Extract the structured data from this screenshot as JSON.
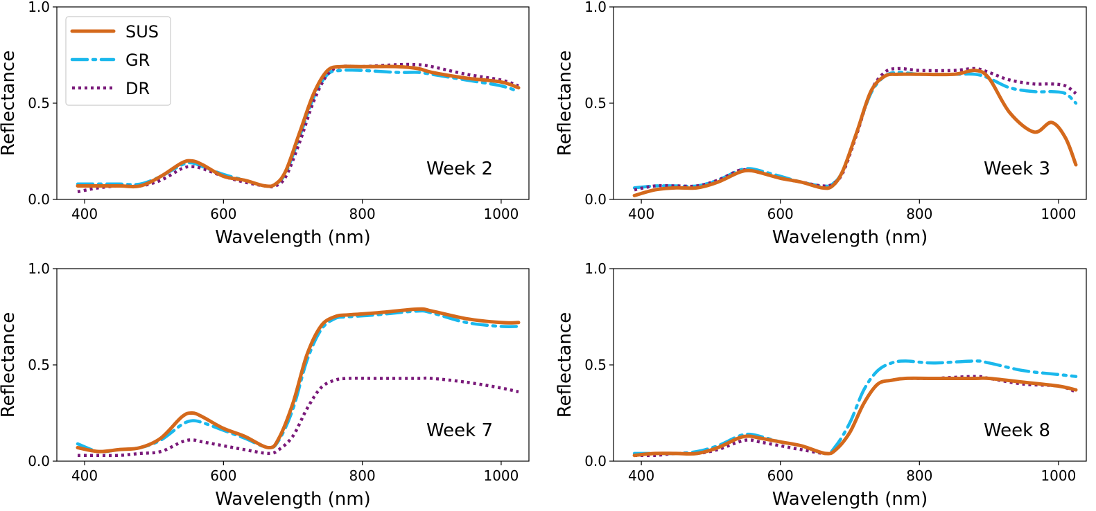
{
  "chart_data": [
    {
      "type": "line",
      "annotation": "Week 2",
      "xlabel": "Wavelength (nm)",
      "ylabel": "Reflectance",
      "xlim": [
        360,
        1040
      ],
      "ylim": [
        0,
        1
      ],
      "xticks": [
        400,
        600,
        800,
        1000
      ],
      "yticks": [
        0.0,
        0.5,
        1.0
      ],
      "ytick_labels": [
        "0.0",
        "0.5",
        "1.0"
      ],
      "legend": "top-left",
      "series": [
        {
          "name": "SUS",
          "color": "#d4691c",
          "style": "solid",
          "x": [
            390,
            420,
            450,
            480,
            510,
            540,
            555,
            570,
            600,
            630,
            660,
            675,
            690,
            710,
            730,
            750,
            770,
            800,
            850,
            880,
            900,
            950,
            1000,
            1025
          ],
          "y": [
            0.07,
            0.07,
            0.07,
            0.07,
            0.12,
            0.19,
            0.2,
            0.18,
            0.12,
            0.1,
            0.07,
            0.08,
            0.15,
            0.35,
            0.55,
            0.67,
            0.69,
            0.69,
            0.69,
            0.68,
            0.66,
            0.63,
            0.61,
            0.58
          ]
        },
        {
          "name": "GR",
          "color": "#1ab8ec",
          "style": "dashdot",
          "x": [
            390,
            420,
            450,
            480,
            510,
            540,
            555,
            570,
            600,
            630,
            660,
            675,
            690,
            710,
            730,
            750,
            770,
            800,
            850,
            880,
            900,
            950,
            1000,
            1025
          ],
          "y": [
            0.08,
            0.08,
            0.08,
            0.08,
            0.12,
            0.18,
            0.19,
            0.17,
            0.13,
            0.1,
            0.07,
            0.08,
            0.14,
            0.33,
            0.53,
            0.65,
            0.67,
            0.67,
            0.66,
            0.66,
            0.65,
            0.62,
            0.59,
            0.56
          ]
        },
        {
          "name": "DR",
          "color": "#7a1a7a",
          "style": "dotted",
          "x": [
            390,
            420,
            450,
            480,
            510,
            540,
            555,
            570,
            600,
            630,
            660,
            675,
            690,
            710,
            730,
            750,
            770,
            800,
            850,
            880,
            900,
            950,
            1000,
            1025
          ],
          "y": [
            0.04,
            0.06,
            0.07,
            0.07,
            0.1,
            0.16,
            0.17,
            0.16,
            0.12,
            0.09,
            0.07,
            0.07,
            0.12,
            0.3,
            0.51,
            0.65,
            0.69,
            0.69,
            0.7,
            0.7,
            0.69,
            0.65,
            0.62,
            0.59
          ]
        }
      ]
    },
    {
      "type": "line",
      "annotation": "Week 3",
      "xlabel": "Wavelength (nm)",
      "ylabel": "Reflectance",
      "xlim": [
        360,
        1040
      ],
      "ylim": [
        0,
        1
      ],
      "xticks": [
        400,
        600,
        800,
        1000
      ],
      "yticks": [
        0.0,
        0.5,
        1.0
      ],
      "ytick_labels": [
        "0.0",
        "0.5",
        "1.0"
      ],
      "series": [
        {
          "name": "SUS",
          "color": "#d4691c",
          "style": "solid",
          "x": [
            390,
            420,
            450,
            480,
            510,
            540,
            555,
            570,
            600,
            630,
            660,
            675,
            690,
            710,
            730,
            750,
            770,
            800,
            850,
            880,
            900,
            930,
            965,
            990,
            1010,
            1025
          ],
          "y": [
            0.02,
            0.05,
            0.06,
            0.06,
            0.09,
            0.14,
            0.15,
            0.14,
            0.11,
            0.09,
            0.06,
            0.07,
            0.15,
            0.35,
            0.56,
            0.64,
            0.65,
            0.65,
            0.65,
            0.67,
            0.63,
            0.45,
            0.35,
            0.4,
            0.32,
            0.18
          ]
        },
        {
          "name": "GR",
          "color": "#1ab8ec",
          "style": "dashdot",
          "x": [
            390,
            420,
            450,
            480,
            510,
            540,
            555,
            570,
            600,
            630,
            660,
            675,
            690,
            710,
            730,
            750,
            770,
            800,
            850,
            880,
            900,
            930,
            965,
            990,
            1010,
            1025
          ],
          "y": [
            0.06,
            0.07,
            0.07,
            0.07,
            0.1,
            0.15,
            0.16,
            0.15,
            0.12,
            0.09,
            0.07,
            0.08,
            0.15,
            0.35,
            0.55,
            0.64,
            0.66,
            0.65,
            0.65,
            0.65,
            0.63,
            0.58,
            0.56,
            0.56,
            0.55,
            0.5
          ]
        },
        {
          "name": "DR",
          "color": "#7a1a7a",
          "style": "dotted",
          "x": [
            390,
            420,
            450,
            480,
            510,
            540,
            555,
            570,
            600,
            630,
            660,
            675,
            690,
            710,
            730,
            750,
            770,
            800,
            850,
            880,
            900,
            930,
            965,
            990,
            1010,
            1025
          ],
          "y": [
            0.05,
            0.07,
            0.07,
            0.07,
            0.1,
            0.15,
            0.15,
            0.14,
            0.11,
            0.09,
            0.07,
            0.08,
            0.14,
            0.34,
            0.56,
            0.66,
            0.68,
            0.67,
            0.67,
            0.68,
            0.66,
            0.62,
            0.6,
            0.6,
            0.59,
            0.55
          ]
        }
      ]
    },
    {
      "type": "line",
      "annotation": "Week 7",
      "xlabel": "Wavelength (nm)",
      "ylabel": "Reflectance",
      "xlim": [
        360,
        1040
      ],
      "ylim": [
        0,
        1
      ],
      "xticks": [
        400,
        600,
        800,
        1000
      ],
      "yticks": [
        0.0,
        0.5,
        1.0
      ],
      "ytick_labels": [
        "0.0",
        "0.5",
        "1.0"
      ],
      "series": [
        {
          "name": "SUS",
          "color": "#d4691c",
          "style": "solid",
          "x": [
            390,
            420,
            450,
            480,
            510,
            540,
            555,
            570,
            600,
            630,
            665,
            680,
            700,
            720,
            740,
            760,
            780,
            820,
            880,
            900,
            950,
            1000,
            1025
          ],
          "y": [
            0.07,
            0.05,
            0.06,
            0.07,
            0.12,
            0.23,
            0.25,
            0.23,
            0.17,
            0.13,
            0.07,
            0.12,
            0.3,
            0.55,
            0.7,
            0.75,
            0.76,
            0.77,
            0.79,
            0.78,
            0.74,
            0.72,
            0.72
          ]
        },
        {
          "name": "GR",
          "color": "#1ab8ec",
          "style": "dashdot",
          "x": [
            390,
            420,
            450,
            480,
            510,
            540,
            555,
            570,
            600,
            630,
            665,
            680,
            700,
            720,
            740,
            760,
            780,
            820,
            880,
            900,
            950,
            1000,
            1025
          ],
          "y": [
            0.09,
            0.05,
            0.06,
            0.07,
            0.11,
            0.19,
            0.21,
            0.2,
            0.16,
            0.12,
            0.07,
            0.11,
            0.27,
            0.52,
            0.68,
            0.74,
            0.75,
            0.76,
            0.78,
            0.77,
            0.72,
            0.7,
            0.7
          ]
        },
        {
          "name": "DR",
          "color": "#7a1a7a",
          "style": "dotted",
          "x": [
            390,
            420,
            450,
            480,
            510,
            540,
            555,
            570,
            600,
            630,
            665,
            680,
            700,
            720,
            740,
            760,
            780,
            820,
            880,
            900,
            950,
            1000,
            1025
          ],
          "y": [
            0.03,
            0.03,
            0.03,
            0.04,
            0.05,
            0.1,
            0.11,
            0.1,
            0.08,
            0.06,
            0.04,
            0.06,
            0.13,
            0.27,
            0.38,
            0.42,
            0.43,
            0.43,
            0.43,
            0.43,
            0.41,
            0.38,
            0.36
          ]
        }
      ]
    },
    {
      "type": "line",
      "annotation": "Week 8",
      "xlabel": "Wavelength (nm)",
      "ylabel": "Reflectance",
      "xlim": [
        360,
        1040
      ],
      "ylim": [
        0,
        1
      ],
      "xticks": [
        400,
        600,
        800,
        1000
      ],
      "yticks": [
        0.0,
        0.5,
        1.0
      ],
      "ytick_labels": [
        "0.0",
        "0.5",
        "1.0"
      ],
      "series": [
        {
          "name": "SUS",
          "color": "#d4691c",
          "style": "solid",
          "x": [
            390,
            420,
            450,
            480,
            510,
            540,
            555,
            570,
            600,
            630,
            665,
            680,
            700,
            720,
            740,
            760,
            780,
            820,
            880,
            900,
            950,
            1000,
            1025
          ],
          "y": [
            0.03,
            0.04,
            0.04,
            0.04,
            0.07,
            0.12,
            0.13,
            0.12,
            0.1,
            0.08,
            0.04,
            0.06,
            0.15,
            0.3,
            0.4,
            0.42,
            0.43,
            0.43,
            0.43,
            0.43,
            0.41,
            0.39,
            0.37
          ]
        },
        {
          "name": "GR",
          "color": "#1ab8ec",
          "style": "dashdot",
          "x": [
            390,
            420,
            450,
            480,
            510,
            540,
            555,
            570,
            600,
            630,
            665,
            680,
            700,
            720,
            740,
            760,
            780,
            820,
            880,
            900,
            950,
            1000,
            1025
          ],
          "y": [
            0.04,
            0.04,
            0.04,
            0.05,
            0.08,
            0.13,
            0.14,
            0.13,
            0.1,
            0.08,
            0.04,
            0.08,
            0.2,
            0.37,
            0.47,
            0.51,
            0.52,
            0.51,
            0.52,
            0.51,
            0.47,
            0.45,
            0.44
          ]
        },
        {
          "name": "DR",
          "color": "#7a1a7a",
          "style": "dotted",
          "x": [
            390,
            420,
            450,
            480,
            510,
            540,
            555,
            570,
            600,
            630,
            665,
            680,
            700,
            720,
            740,
            760,
            780,
            820,
            880,
            900,
            950,
            1000,
            1025
          ],
          "y": [
            0.03,
            0.03,
            0.04,
            0.04,
            0.06,
            0.1,
            0.11,
            0.1,
            0.08,
            0.06,
            0.04,
            0.06,
            0.15,
            0.3,
            0.4,
            0.42,
            0.43,
            0.43,
            0.44,
            0.43,
            0.4,
            0.39,
            0.36
          ]
        }
      ]
    }
  ]
}
